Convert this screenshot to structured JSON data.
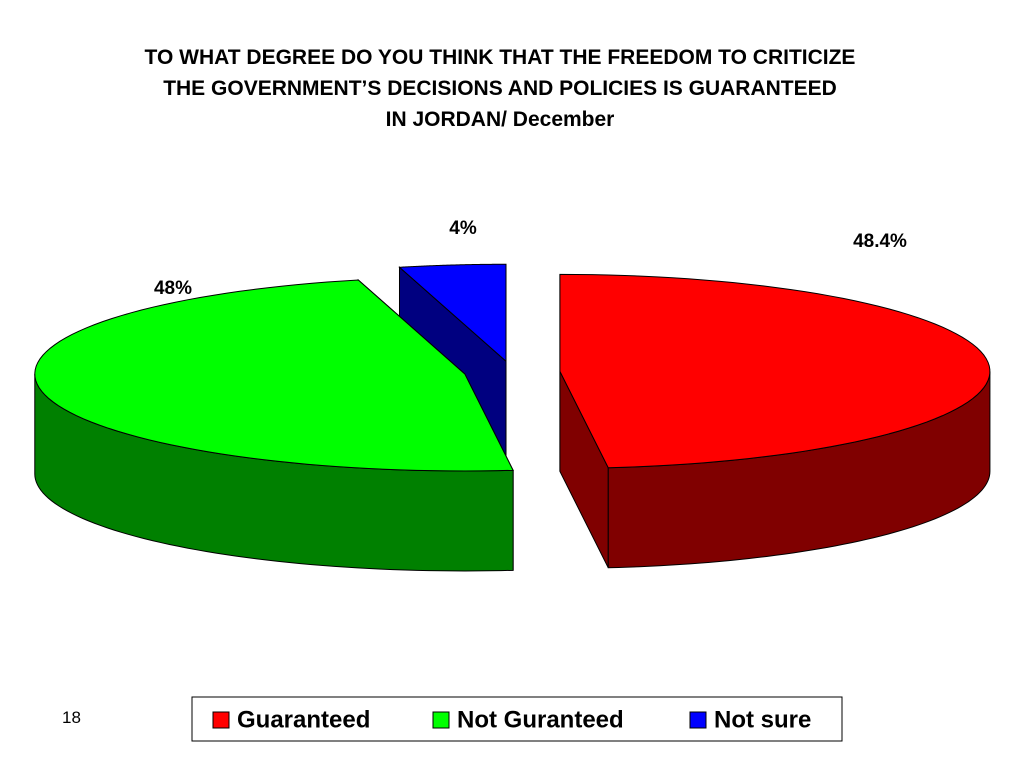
{
  "chart_data": {
    "type": "pie3d",
    "title": "TO WHAT DEGREE DO YOU THINK THAT THE FREEDOM TO CRITICIZE\nTHE GOVERNMENT’S DECISIONS AND POLICIES IS GUARANTEED\nIN JORDAN/ December",
    "categories": [
      "Guaranteed",
      "Not Guranteed",
      "Not sure"
    ],
    "values": [
      48.4,
      48,
      4
    ],
    "value_labels": [
      "48.4%",
      "48%",
      "4%"
    ],
    "colors": [
      "#ff0000",
      "#00ff00",
      "#0000ff"
    ],
    "legend": "bottom"
  },
  "slide_number": "18"
}
